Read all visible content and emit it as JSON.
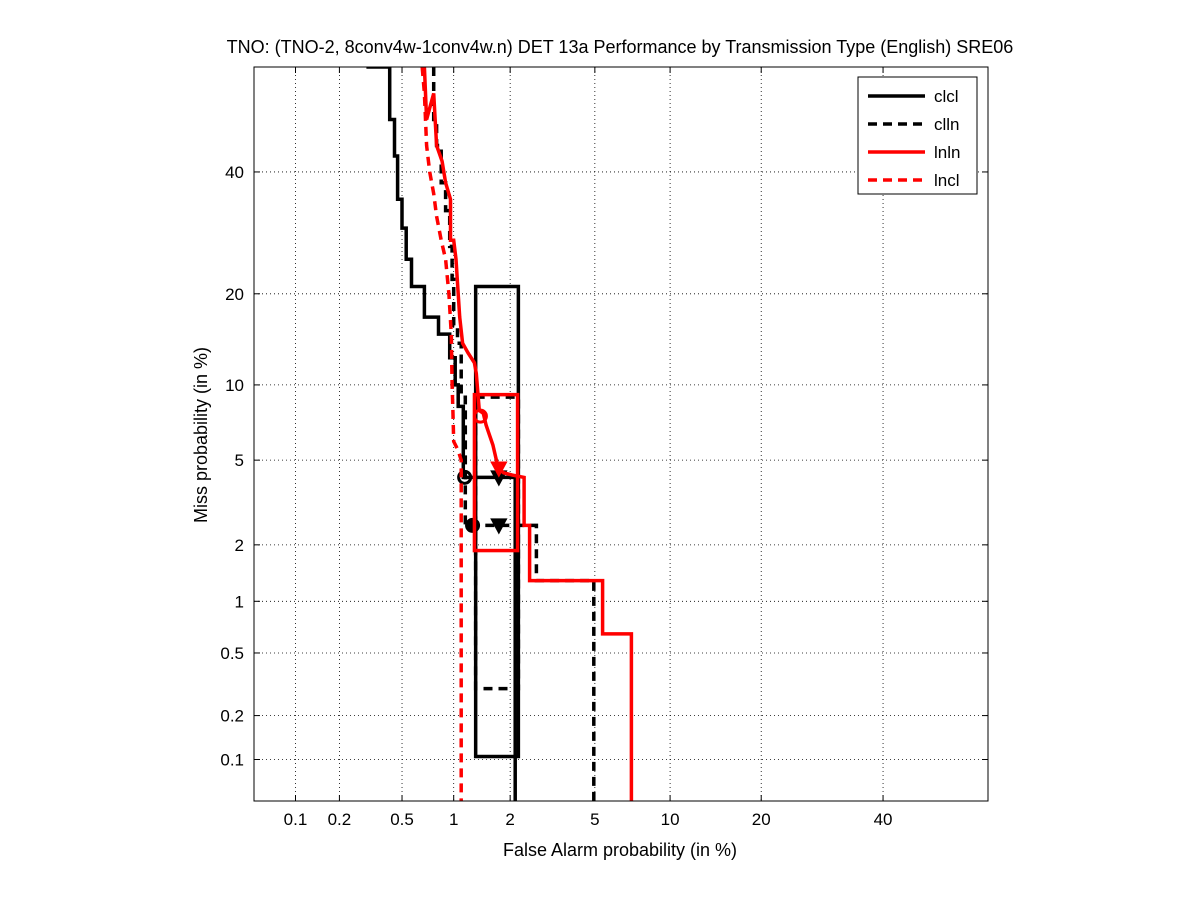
{
  "chart_data": {
    "type": "line",
    "title": "TNO: (TNO-2, 8conv4w-1conv4w.n) DET 13a Performance by Transmission Type (English) SRE06",
    "xlabel": "False Alarm probability (in %)",
    "ylabel": "Miss probability (in %)",
    "scale": "normal-deviate (DET)",
    "xlim": [
      0.05,
      60
    ],
    "ylim": [
      0.05,
      60
    ],
    "grid": true,
    "legend_position": "top-right",
    "x_ticks": [
      0.1,
      0.2,
      0.5,
      1,
      2,
      5,
      10,
      20,
      40
    ],
    "x_tick_labels": [
      "0.1",
      "0.2",
      "0.5",
      "1",
      "2",
      "5",
      "10",
      "20",
      "40"
    ],
    "y_ticks": [
      0.1,
      0.2,
      0.5,
      1,
      2,
      5,
      10,
      20,
      40
    ],
    "y_tick_labels": [
      "0.1",
      "0.2",
      "0.5",
      "1",
      "2",
      "5",
      "10",
      "20",
      "40"
    ],
    "series": [
      {
        "name": "clcl",
        "color": "#000000",
        "dash": "solid",
        "points": [
          [
            0.3,
            60
          ],
          [
            0.42,
            60
          ],
          [
            0.42,
            50
          ],
          [
            0.45,
            50
          ],
          [
            0.45,
            43
          ],
          [
            0.47,
            43
          ],
          [
            0.47,
            35
          ],
          [
            0.5,
            35
          ],
          [
            0.5,
            30
          ],
          [
            0.53,
            30
          ],
          [
            0.53,
            25
          ],
          [
            0.57,
            25
          ],
          [
            0.57,
            21
          ],
          [
            0.68,
            21
          ],
          [
            0.68,
            17
          ],
          [
            0.82,
            17
          ],
          [
            0.82,
            15
          ],
          [
            0.95,
            15
          ],
          [
            0.95,
            12.5
          ],
          [
            1.02,
            12.5
          ],
          [
            1.02,
            10
          ],
          [
            1.06,
            10
          ],
          [
            1.06,
            8.3
          ],
          [
            1.13,
            8.3
          ],
          [
            1.13,
            4.2
          ],
          [
            2.12,
            4.2
          ],
          [
            2.12,
            0.05
          ]
        ],
        "min_dcf": [
          1.15,
          4.2
        ],
        "act_dcf": [
          1.75,
          4.2
        ],
        "ci_box": {
          "x": [
            1.32,
            2.2
          ],
          "y": [
            0.105,
            21
          ]
        }
      },
      {
        "name": "clln",
        "color": "#000000",
        "dash": "dashed",
        "points": [
          [
            0.77,
            60
          ],
          [
            0.77,
            50
          ],
          [
            0.8,
            50
          ],
          [
            0.8,
            45
          ],
          [
            0.85,
            45
          ],
          [
            0.85,
            38
          ],
          [
            0.9,
            38
          ],
          [
            0.9,
            33
          ],
          [
            0.95,
            33
          ],
          [
            0.95,
            27
          ],
          [
            0.98,
            27
          ],
          [
            0.98,
            22
          ],
          [
            1.0,
            22
          ],
          [
            1.0,
            16
          ],
          [
            1.05,
            16
          ],
          [
            1.05,
            14
          ],
          [
            1.1,
            14
          ],
          [
            1.1,
            9
          ],
          [
            1.16,
            9
          ],
          [
            1.16,
            2.5
          ],
          [
            2.7,
            2.5
          ],
          [
            2.7,
            1.3
          ],
          [
            4.95,
            1.3
          ],
          [
            4.95,
            0.05
          ]
        ],
        "min_dcf": [
          1.27,
          2.5
        ],
        "act_dcf": [
          1.75,
          2.5
        ],
        "ci_box": {
          "x": [
            1.32,
            2.2
          ],
          "y": [
            0.3,
            9
          ]
        }
      },
      {
        "name": "lnln",
        "color": "#ff0000",
        "dash": "solid",
        "points": [
          [
            0.68,
            60
          ],
          [
            0.7,
            50
          ],
          [
            0.77,
            55
          ],
          [
            0.8,
            45
          ],
          [
            0.86,
            42
          ],
          [
            0.9,
            38
          ],
          [
            0.96,
            35
          ],
          [
            0.96,
            28
          ],
          [
            1.0,
            28
          ],
          [
            1.03,
            25
          ],
          [
            1.06,
            20
          ],
          [
            1.08,
            17
          ],
          [
            1.12,
            14
          ],
          [
            1.2,
            13
          ],
          [
            1.3,
            12
          ],
          [
            1.33,
            11
          ],
          [
            1.38,
            8
          ],
          [
            1.45,
            7.8
          ],
          [
            1.5,
            7
          ],
          [
            1.55,
            6.5
          ],
          [
            1.63,
            5.8
          ],
          [
            1.7,
            5
          ],
          [
            1.75,
            4.6
          ],
          [
            1.85,
            4.4
          ],
          [
            2.05,
            4.3
          ],
          [
            2.35,
            4.2
          ],
          [
            2.35,
            2.5
          ],
          [
            2.5,
            2.5
          ],
          [
            2.5,
            1.3
          ],
          [
            5.4,
            1.3
          ],
          [
            5.4,
            0.65
          ],
          [
            7.1,
            0.65
          ],
          [
            7.1,
            0.05
          ]
        ],
        "min_dcf": [
          1.4,
          7.6
        ],
        "act_dcf": [
          1.75,
          4.6
        ],
        "ci_box": {
          "x": [
            1.3,
            2.18
          ],
          "y": [
            1.87,
            9.2
          ]
        }
      },
      {
        "name": "lncl",
        "color": "#ff0000",
        "dash": "dashed",
        "points": [
          [
            0.66,
            60
          ],
          [
            0.68,
            55
          ],
          [
            0.7,
            45
          ],
          [
            0.73,
            40
          ],
          [
            0.77,
            36
          ],
          [
            0.8,
            32
          ],
          [
            0.85,
            28
          ],
          [
            0.9,
            25
          ],
          [
            0.94,
            20
          ],
          [
            0.97,
            15
          ],
          [
            0.98,
            10
          ],
          [
            0.99,
            8
          ],
          [
            1.0,
            6
          ],
          [
            1.06,
            5.5
          ],
          [
            1.1,
            5
          ],
          [
            1.1,
            0.05
          ]
        ],
        "min_dcf": null,
        "act_dcf": null,
        "ci_box": null
      }
    ]
  }
}
